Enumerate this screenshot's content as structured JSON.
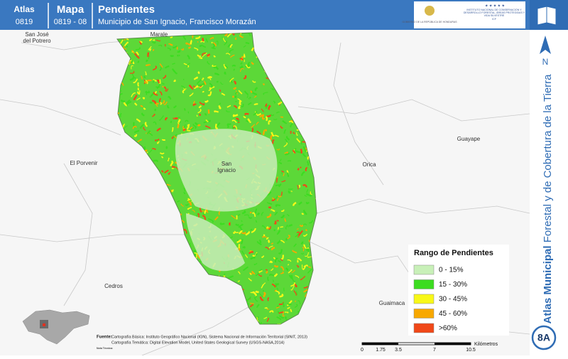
{
  "header": {
    "atlas_label": "Atlas",
    "atlas_code": "0819",
    "map_label": "Mapa",
    "map_code": "0819 - 08",
    "title": "Pendientes",
    "subtitle": "Municipio de San Ignacio, Francisco Morazán",
    "logo_left": "GOBIERNO DE LA REPÚBLICA DE HONDURAS",
    "logo_right": "INSTITUTO NACIONAL DE CONSERVACIÓN Y DESARROLLO FORESTAL, ÁREAS PROTEGIDAS Y VIDA SILVESTRE",
    "logo_right_short": "ICF"
  },
  "places": [
    "San José",
    "del Potrero",
    "Marale",
    "El Porvenir",
    "San",
    "Ignacio",
    "Orica",
    "Guayape",
    "Cedros",
    "Guaimaca"
  ],
  "legend": {
    "title": "Rango de Pendientes",
    "items": [
      {
        "label": "0 - 15%",
        "color": "#c8f0b8"
      },
      {
        "label": "15 - 30%",
        "color": "#3cdc20"
      },
      {
        "label": "30 - 45%",
        "color": "#f8f818"
      },
      {
        "label": "45 - 60%",
        "color": "#f8a800"
      },
      {
        "label": ">60%",
        "color": "#f04818"
      }
    ]
  },
  "source": {
    "label": "Fuente:",
    "lines": [
      "Cartografía Básica: Instituto Geográfico Nacional (IGN), Sistema Nacional de Información Territorial (SINIT, 2013)",
      "Cartografía Temática: Digital Elevation Model, United States Geological Survey (USGS-NASA,2014)"
    ],
    "note_label": "Nota Técnica:"
  },
  "scale": {
    "ticks": [
      "0",
      "1.75",
      "3.5",
      "7",
      "10.5"
    ],
    "unit": "Kilómetros"
  },
  "sidebar": {
    "north": "N",
    "title_bold": "Atlas Municipal",
    "title_rest": " Forestal y de Cobertura de la Tierra",
    "sheet": "8A"
  }
}
